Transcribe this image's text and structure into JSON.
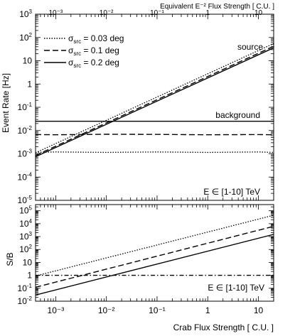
{
  "chart_data": [
    {
      "type": "line",
      "top_axis_label": "Equivalent E⁻² Flux Strength [ C.U. ]",
      "top_tick_labels": [
        "10⁻³",
        "10⁻²",
        "10⁻¹",
        "1",
        "10"
      ],
      "ylabel": "Event Rate [Hz]",
      "x_scale": "log",
      "y_scale": "log",
      "xlim": [
        0.0004,
        20
      ],
      "ylim": [
        1e-05,
        1000
      ],
      "y_tick_labels": [
        {
          "base": "10",
          "exp": "3"
        },
        {
          "base": "10",
          "exp": "2"
        },
        {
          "base": "10",
          "exp": ""
        },
        {
          "base": "1",
          "exp": ""
        },
        {
          "base": "10",
          "exp": "-1"
        },
        {
          "base": "10",
          "exp": "-2"
        },
        {
          "base": "10",
          "exp": "-3"
        },
        {
          "base": "10",
          "exp": "-4"
        },
        {
          "base": "10",
          "exp": "-5"
        }
      ],
      "legend": [
        {
          "symbol": "σ",
          "sub": "src",
          "rest": " = 0.03 deg",
          "style": "dotted"
        },
        {
          "symbol": "σ",
          "sub": "src",
          "rest": " = 0.1 deg",
          "style": "dashed"
        },
        {
          "symbol": "σ",
          "sub": "src",
          "rest": " = 0.2 deg",
          "style": "solid"
        }
      ],
      "legend_position": "top-left",
      "annotations": {
        "source": "source",
        "background": "background",
        "energy": "E ∈ [1-10] TeV"
      },
      "series": [
        {
          "group": "source",
          "sigma_deg": 0.03,
          "style": "dotted",
          "x": [
            0.0004,
            20
          ],
          "y": [
            0.0011,
            55
          ]
        },
        {
          "group": "source",
          "sigma_deg": 0.1,
          "style": "dashed",
          "x": [
            0.0004,
            20
          ],
          "y": [
            0.00085,
            42
          ]
        },
        {
          "group": "source",
          "sigma_deg": 0.2,
          "style": "solid",
          "x": [
            0.0004,
            20
          ],
          "y": [
            0.00075,
            36
          ]
        },
        {
          "group": "background",
          "sigma_deg": 0.03,
          "style": "dotted",
          "x": [
            0.0004,
            0.001,
            0.01,
            0.1,
            1,
            10,
            20
          ],
          "y": [
            0.00115,
            0.0012,
            0.00115,
            0.0012,
            0.00115,
            0.0012,
            0.00115
          ]
        },
        {
          "group": "background",
          "sigma_deg": 0.1,
          "style": "dashed",
          "x": [
            0.0004,
            0.001,
            0.01,
            0.1,
            1,
            10,
            20
          ],
          "y": [
            0.0067,
            0.0066,
            0.0069,
            0.0068,
            0.0066,
            0.0067,
            0.0066
          ]
        },
        {
          "group": "background",
          "sigma_deg": 0.2,
          "style": "solid",
          "x": [
            0.0004,
            0.01,
            1,
            20
          ],
          "y": [
            0.025,
            0.025,
            0.025,
            0.025
          ]
        }
      ]
    },
    {
      "type": "line",
      "xlabel": "Crab Flux Strength [ C.U. ]",
      "ylabel": "S/B",
      "x_scale": "log",
      "y_scale": "log",
      "xlim": [
        0.0004,
        20
      ],
      "ylim": [
        0.01,
        300000
      ],
      "x_tick_labels": [
        "10⁻³",
        "10⁻²",
        "10⁻¹",
        "1",
        "10"
      ],
      "y_tick_labels": [
        {
          "base": "10",
          "exp": "5"
        },
        {
          "base": "10",
          "exp": "4"
        },
        {
          "base": "10",
          "exp": "3"
        },
        {
          "base": "10",
          "exp": "2"
        },
        {
          "base": "10",
          "exp": ""
        },
        {
          "base": "1",
          "exp": ""
        },
        {
          "base": "10",
          "exp": "-1"
        },
        {
          "base": "10",
          "exp": "-2"
        }
      ],
      "annotations": {
        "energy": "E ∈ [1-10] TeV"
      },
      "series": [
        {
          "sigma_deg": 0.03,
          "style": "dotted",
          "x": [
            0.0004,
            20
          ],
          "y": [
            0.9,
            45000
          ]
        },
        {
          "sigma_deg": 0.1,
          "style": "dashed",
          "x": [
            0.0004,
            20
          ],
          "y": [
            0.12,
            6200
          ]
        },
        {
          "sigma_deg": 0.2,
          "style": "solid",
          "x": [
            0.0004,
            20
          ],
          "y": [
            0.03,
            1500
          ]
        },
        {
          "style": "dash-dot",
          "color": "#888888",
          "reference": "S/B = 1",
          "x": [
            0.0004,
            20
          ],
          "y": [
            1,
            1
          ]
        }
      ]
    }
  ]
}
